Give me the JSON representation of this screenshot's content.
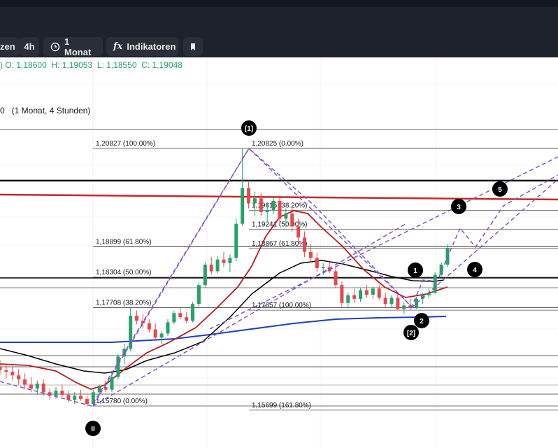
{
  "toolbar": {
    "partial_label": "zen",
    "interval_label": "4h",
    "range_label": "1 Monat",
    "indicators_label": "Indikatoren",
    "indicators_icon": "fx"
  },
  "ohlc": {
    "prefix": ")",
    "o_label": "O:",
    "o_value": "1,18600",
    "h_label": "H:",
    "h_value": "1,19053",
    "l_label": "L:",
    "l_value": "1,18550",
    "c_label": "C:",
    "c_value": "1,19048",
    "color": "#26a269"
  },
  "legend": {
    "text": "0   (1 Monat, 4 Stunden)"
  },
  "chart_data": {
    "type": "candlestick",
    "up_color": "#26a269",
    "down_color": "#e5484d",
    "fib_levels_left": [
      {
        "label": "1,20827 (100.00%)",
        "price": 1.20827
      },
      {
        "label": "1,18899 (61.80%)",
        "price": 1.18899
      },
      {
        "label": "1,18304 (50.00%)",
        "price": 1.18304
      },
      {
        "label": "1,17708 (38.20%)",
        "price": 1.17708
      },
      {
        "label": "1,15780 (0.00%)",
        "price": 1.1578
      }
    ],
    "fib_levels_right": [
      {
        "label": "1,20825 (0.00%)",
        "price": 1.20825
      },
      {
        "label": "1,19615 (38.20%)",
        "price": 1.19615
      },
      {
        "label": "1,19241 (50.00%)",
        "price": 1.19241
      },
      {
        "label": "1,18867 (61.80%)",
        "price": 1.18867
      },
      {
        "label": "1,17657 (100.00%)",
        "price": 1.17657
      },
      {
        "label": "1,15699 (161.80%)",
        "price": 1.15699
      }
    ],
    "wave_labels": [
      "[1]",
      "II",
      "1",
      "2",
      "[2]",
      "3",
      "4",
      "5"
    ],
    "lines": {
      "ma_short_color": "#b71c1c",
      "ma_long_color": "#000000",
      "ma_blue_color": "#1e3fbf",
      "horizontal_red_color": "#c62828",
      "pattern_color": "#7e57c2"
    },
    "candles": [
      [
        1.1655,
        1.1668,
        1.164,
        1.1648
      ],
      [
        1.1648,
        1.166,
        1.1632,
        1.1645
      ],
      [
        1.1645,
        1.1655,
        1.1628,
        1.1638
      ],
      [
        1.1638,
        1.165,
        1.162,
        1.163
      ],
      [
        1.163,
        1.1642,
        1.1612,
        1.162
      ],
      [
        1.162,
        1.1635,
        1.1605,
        1.1612
      ],
      [
        1.1612,
        1.1628,
        1.16,
        1.1622
      ],
      [
        1.1622,
        1.163,
        1.1598,
        1.1605
      ],
      [
        1.1605,
        1.1612,
        1.159,
        1.1598
      ],
      [
        1.1598,
        1.1615,
        1.1592,
        1.1608
      ],
      [
        1.1608,
        1.162,
        1.1596,
        1.16
      ],
      [
        1.16,
        1.1608,
        1.1585,
        1.159
      ],
      [
        1.159,
        1.1605,
        1.1582,
        1.1598
      ],
      [
        1.1598,
        1.161,
        1.1588,
        1.1592
      ],
      [
        1.1592,
        1.1598,
        1.1576,
        1.1582
      ],
      [
        1.1582,
        1.161,
        1.1578,
        1.1605
      ],
      [
        1.1605,
        1.162,
        1.1598,
        1.1615
      ],
      [
        1.1615,
        1.1628,
        1.1605,
        1.161
      ],
      [
        1.161,
        1.164,
        1.1605,
        1.1635
      ],
      [
        1.1635,
        1.168,
        1.163,
        1.1675
      ],
      [
        1.1675,
        1.17,
        1.166,
        1.169
      ],
      [
        1.169,
        1.1772,
        1.1685,
        1.1755
      ],
      [
        1.1755,
        1.1765,
        1.1738,
        1.1745
      ],
      [
        1.1745,
        1.1758,
        1.173,
        1.174
      ],
      [
        1.174,
        1.1748,
        1.1722,
        1.1728
      ],
      [
        1.1728,
        1.174,
        1.1705,
        1.1712
      ],
      [
        1.1712,
        1.1725,
        1.17,
        1.172
      ],
      [
        1.172,
        1.1748,
        1.1715,
        1.1742
      ],
      [
        1.1742,
        1.1765,
        1.1738,
        1.176
      ],
      [
        1.176,
        1.177,
        1.1748,
        1.1752
      ],
      [
        1.1752,
        1.1762,
        1.174,
        1.1745
      ],
      [
        1.1745,
        1.1782,
        1.1742,
        1.1778
      ],
      [
        1.1778,
        1.182,
        1.1772,
        1.1815
      ],
      [
        1.1815,
        1.186,
        1.181,
        1.1855
      ],
      [
        1.1855,
        1.187,
        1.1835,
        1.1842
      ],
      [
        1.1842,
        1.1872,
        1.1838,
        1.1865
      ],
      [
        1.1865,
        1.188,
        1.185,
        1.1858
      ],
      [
        1.1858,
        1.1875,
        1.184,
        1.1868
      ],
      [
        1.1868,
        1.1945,
        1.1862,
        1.1935
      ],
      [
        1.1935,
        1.2083,
        1.193,
        1.2005
      ],
      [
        1.2005,
        1.202,
        1.1965,
        1.1975
      ],
      [
        1.1975,
        1.1998,
        1.195,
        1.1985
      ],
      [
        1.1985,
        1.1995,
        1.195,
        1.1958
      ],
      [
        1.1958,
        1.1975,
        1.194,
        1.1962
      ],
      [
        1.1962,
        1.199,
        1.1955,
        1.198
      ],
      [
        1.198,
        1.1988,
        1.1938,
        1.1945
      ],
      [
        1.1945,
        1.1965,
        1.1928,
        1.1955
      ],
      [
        1.1955,
        1.1968,
        1.192,
        1.193
      ],
      [
        1.193,
        1.1945,
        1.19,
        1.1908
      ],
      [
        1.1908,
        1.192,
        1.187,
        1.188
      ],
      [
        1.188,
        1.1895,
        1.186,
        1.1868
      ],
      [
        1.1868,
        1.1878,
        1.184,
        1.1848
      ],
      [
        1.1848,
        1.1858,
        1.1835,
        1.185
      ],
      [
        1.185,
        1.1862,
        1.1838,
        1.1842
      ],
      [
        1.1842,
        1.185,
        1.181,
        1.1815
      ],
      [
        1.1815,
        1.1822,
        1.1772,
        1.178
      ],
      [
        1.178,
        1.18,
        1.177,
        1.1795
      ],
      [
        1.1795,
        1.1808,
        1.178,
        1.1788
      ],
      [
        1.1788,
        1.181,
        1.1782,
        1.1805
      ],
      [
        1.1805,
        1.1815,
        1.179,
        1.1796
      ],
      [
        1.1796,
        1.1812,
        1.1788,
        1.1808
      ],
      [
        1.1808,
        1.1815,
        1.1785,
        1.179
      ],
      [
        1.179,
        1.18,
        1.1772,
        1.1778
      ],
      [
        1.1778,
        1.1795,
        1.177,
        1.179
      ],
      [
        1.179,
        1.1798,
        1.1765,
        1.1768
      ],
      [
        1.1768,
        1.1782,
        1.1758,
        1.1775
      ],
      [
        1.1775,
        1.1788,
        1.1765,
        1.177
      ],
      [
        1.177,
        1.1792,
        1.1768,
        1.1788
      ],
      [
        1.1788,
        1.18,
        1.1778,
        1.1795
      ],
      [
        1.1795,
        1.1808,
        1.1788,
        1.18
      ],
      [
        1.18,
        1.184,
        1.1798,
        1.1835
      ],
      [
        1.1835,
        1.186,
        1.183,
        1.1855
      ],
      [
        1.1855,
        1.1895,
        1.185,
        1.1888
      ]
    ]
  }
}
